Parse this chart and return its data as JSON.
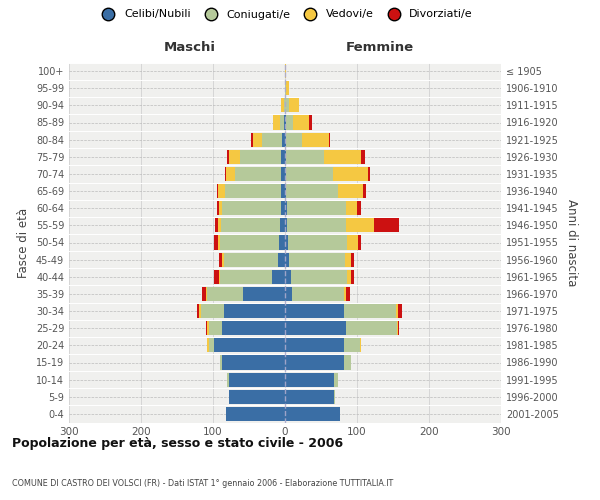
{
  "age_groups": [
    "0-4",
    "5-9",
    "10-14",
    "15-19",
    "20-24",
    "25-29",
    "30-34",
    "35-39",
    "40-44",
    "45-49",
    "50-54",
    "55-59",
    "60-64",
    "65-69",
    "70-74",
    "75-79",
    "80-84",
    "85-89",
    "90-94",
    "95-99",
    "100+"
  ],
  "birth_years": [
    "2001-2005",
    "1996-2000",
    "1991-1995",
    "1986-1990",
    "1981-1985",
    "1976-1980",
    "1971-1975",
    "1966-1970",
    "1961-1965",
    "1956-1960",
    "1951-1955",
    "1946-1950",
    "1941-1945",
    "1936-1940",
    "1931-1935",
    "1926-1930",
    "1921-1925",
    "1916-1920",
    "1911-1915",
    "1906-1910",
    "≤ 1905"
  ],
  "colors": {
    "celibe": "#3a6ea5",
    "coniugato": "#b5c99a",
    "vedovo": "#f5c842",
    "divorziato": "#cc1111"
  },
  "maschi": {
    "celibe": [
      82,
      78,
      78,
      88,
      98,
      88,
      85,
      58,
      18,
      10,
      8,
      7,
      5,
      5,
      5,
      5,
      4,
      2,
      0,
      0,
      0
    ],
    "coniugato": [
      0,
      0,
      2,
      2,
      8,
      18,
      32,
      50,
      72,
      75,
      82,
      82,
      82,
      78,
      65,
      58,
      28,
      5,
      2,
      0,
      0
    ],
    "vedovo": [
      0,
      0,
      0,
      0,
      2,
      2,
      2,
      2,
      2,
      2,
      3,
      4,
      5,
      10,
      12,
      15,
      12,
      10,
      4,
      0,
      0
    ],
    "divorziato": [
      0,
      0,
      0,
      0,
      0,
      2,
      3,
      5,
      7,
      5,
      5,
      4,
      2,
      2,
      2,
      3,
      3,
      0,
      0,
      0,
      0
    ]
  },
  "femmine": {
    "nubile": [
      76,
      68,
      68,
      82,
      82,
      85,
      82,
      10,
      8,
      5,
      4,
      3,
      3,
      2,
      2,
      2,
      1,
      1,
      0,
      0,
      0
    ],
    "coniugata": [
      0,
      2,
      5,
      10,
      22,
      70,
      72,
      72,
      78,
      78,
      82,
      82,
      82,
      72,
      65,
      52,
      22,
      10,
      5,
      2,
      0
    ],
    "vedova": [
      0,
      0,
      0,
      0,
      1,
      2,
      3,
      3,
      5,
      8,
      15,
      38,
      15,
      35,
      48,
      52,
      38,
      22,
      15,
      3,
      1
    ],
    "divorziata": [
      0,
      0,
      0,
      0,
      0,
      2,
      5,
      5,
      5,
      5,
      4,
      35,
      5,
      3,
      3,
      5,
      2,
      5,
      0,
      0,
      0
    ]
  },
  "xlim": 300,
  "title": "Popolazione per età, sesso e stato civile - 2006",
  "subtitle": "COMUNE DI CASTRO DEI VOLSCI (FR) - Dati ISTAT 1° gennaio 2006 - Elaborazione TUTTITALIA.IT",
  "ylabel": "Fasce di età",
  "ylabel_right": "Anni di nascita",
  "legend_labels": [
    "Celibi/Nubili",
    "Coniugati/e",
    "Vedovi/e",
    "Divorziati/e"
  ],
  "background_color": "#f0f0ee"
}
